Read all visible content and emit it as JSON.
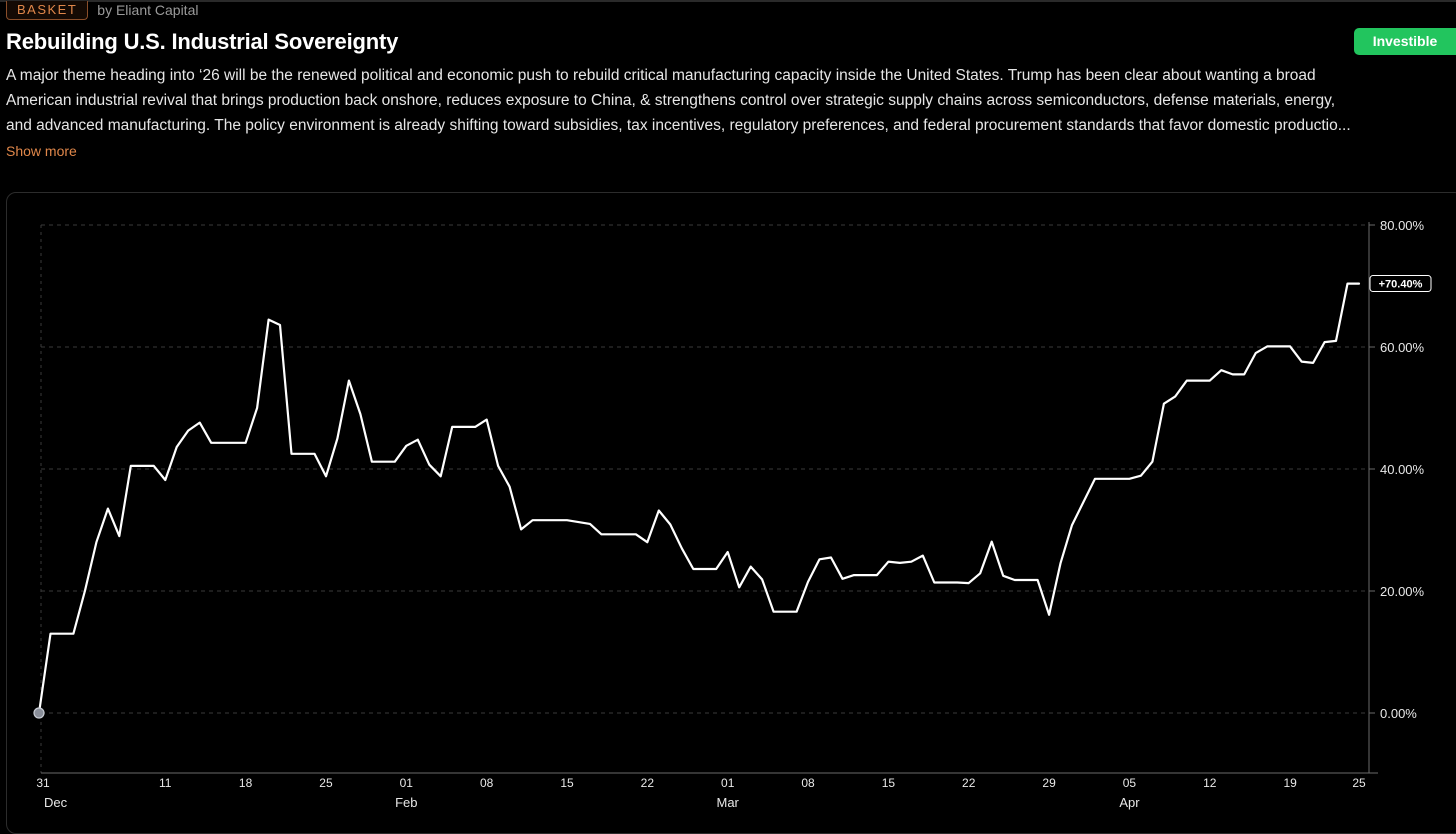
{
  "header": {
    "badge": "BASKET",
    "byline": "by Eliant Capital",
    "title": "Rebuilding U.S. Industrial Sovereignty",
    "status_button": "Investible"
  },
  "description": {
    "lines": [
      "A major theme heading into ‘26 will be the renewed political and economic push to rebuild critical manufacturing capacity inside the United States. Trump has been clear about wanting a broad",
      "American industrial revival that brings production back onshore, reduces exposure to China, & strengthens control over strategic supply chains across semiconductors, defense materials, energy,",
      "and advanced manufacturing. The policy environment is already shifting toward subsidies, tax incentives, regulatory preferences, and federal procurement standards that favor domestic productio..."
    ],
    "show_more": "Show more"
  },
  "colors": {
    "background": "#000000",
    "accent_orange": "#e0874a",
    "button_green": "#22c55e",
    "line": "#ffffff"
  },
  "chart_data": {
    "type": "line",
    "title": "",
    "xlabel": "",
    "ylabel": "",
    "y_axis": "right",
    "y_format": "percent",
    "ylim": [
      -10,
      80
    ],
    "y_ticks": [
      0,
      20,
      40,
      60,
      80
    ],
    "y_tick_labels": [
      "0.00%",
      "20.00%",
      "40.00%",
      "60.00%",
      "80.00%"
    ],
    "grid": true,
    "x_range": [
      "2025-12-31",
      "2026-04-25"
    ],
    "x_ticks": [
      {
        "date": "2025-12-31",
        "day": "31",
        "month": "Dec"
      },
      {
        "date": "2026-01-11",
        "day": "11",
        "month": ""
      },
      {
        "date": "2026-01-18",
        "day": "18",
        "month": ""
      },
      {
        "date": "2026-01-25",
        "day": "25",
        "month": ""
      },
      {
        "date": "2026-02-01",
        "day": "01",
        "month": "Feb"
      },
      {
        "date": "2026-02-08",
        "day": "08",
        "month": ""
      },
      {
        "date": "2026-02-15",
        "day": "15",
        "month": ""
      },
      {
        "date": "2026-02-22",
        "day": "22",
        "month": ""
      },
      {
        "date": "2026-03-01",
        "day": "01",
        "month": "Mar"
      },
      {
        "date": "2026-03-08",
        "day": "08",
        "month": ""
      },
      {
        "date": "2026-03-15",
        "day": "15",
        "month": ""
      },
      {
        "date": "2026-03-22",
        "day": "22",
        "month": ""
      },
      {
        "date": "2026-03-29",
        "day": "29",
        "month": ""
      },
      {
        "date": "2026-04-05",
        "day": "05",
        "month": "Apr"
      },
      {
        "date": "2026-04-12",
        "day": "12",
        "month": ""
      },
      {
        "date": "2026-04-19",
        "day": "19",
        "month": ""
      },
      {
        "date": "2026-04-25",
        "day": "25",
        "month": ""
      }
    ],
    "last_value_label": "+70.40%",
    "series": [
      {
        "x": [
          "2025-12-31",
          "2026-01-01",
          "2026-01-02",
          "2026-01-03",
          "2026-01-04",
          "2026-01-05",
          "2026-01-06",
          "2026-01-07",
          "2026-01-08",
          "2026-01-09",
          "2026-01-10",
          "2026-01-11",
          "2026-01-12",
          "2026-01-13",
          "2026-01-14",
          "2026-01-15",
          "2026-01-16",
          "2026-01-17",
          "2026-01-18",
          "2026-01-19",
          "2026-01-20",
          "2026-01-21",
          "2026-01-22",
          "2026-01-23",
          "2026-01-24",
          "2026-01-25",
          "2026-01-26",
          "2026-01-27",
          "2026-01-28",
          "2026-01-29",
          "2026-01-30",
          "2026-01-31",
          "2026-02-01",
          "2026-02-02",
          "2026-02-03",
          "2026-02-04",
          "2026-02-05",
          "2026-02-06",
          "2026-02-07",
          "2026-02-08",
          "2026-02-09",
          "2026-02-10",
          "2026-02-11",
          "2026-02-12",
          "2026-02-13",
          "2026-02-14",
          "2026-02-15",
          "2026-02-16",
          "2026-02-17",
          "2026-02-18",
          "2026-02-19",
          "2026-02-20",
          "2026-02-21",
          "2026-02-22",
          "2026-02-23",
          "2026-02-24",
          "2026-02-25",
          "2026-02-26",
          "2026-02-27",
          "2026-02-28",
          "2026-03-01",
          "2026-03-02",
          "2026-03-03",
          "2026-03-04",
          "2026-03-05",
          "2026-03-06",
          "2026-03-07",
          "2026-03-08",
          "2026-03-09",
          "2026-03-10",
          "2026-03-11",
          "2026-03-12",
          "2026-03-13",
          "2026-03-14",
          "2026-03-15",
          "2026-03-16",
          "2026-03-17",
          "2026-03-18",
          "2026-03-19",
          "2026-03-20",
          "2026-03-21",
          "2026-03-22",
          "2026-03-23",
          "2026-03-24",
          "2026-03-25",
          "2026-03-26",
          "2026-03-27",
          "2026-03-28",
          "2026-03-29",
          "2026-03-30",
          "2026-03-31",
          "2026-04-01",
          "2026-04-02",
          "2026-04-03",
          "2026-04-04",
          "2026-04-05",
          "2026-04-06",
          "2026-04-07",
          "2026-04-08",
          "2026-04-09",
          "2026-04-10",
          "2026-04-11",
          "2026-04-12",
          "2026-04-13",
          "2026-04-14",
          "2026-04-15",
          "2026-04-16",
          "2026-04-17",
          "2026-04-18",
          "2026-04-19",
          "2026-04-20",
          "2026-04-21",
          "2026-04-22",
          "2026-04-23",
          "2026-04-24",
          "2026-04-25"
        ],
        "y": [
          0,
          13,
          13,
          13,
          20,
          28,
          33.5,
          29,
          40.5,
          40.5,
          40.5,
          38.2,
          43.6,
          46.3,
          47.6,
          44.3,
          44.3,
          44.3,
          44.3,
          50,
          64.5,
          63.6,
          42.5,
          42.5,
          42.5,
          38.8,
          45,
          54.5,
          49,
          41.2,
          41.2,
          41.2,
          43.8,
          44.8,
          40.7,
          38.8,
          46.9,
          46.9,
          46.9,
          48.1,
          40.5,
          37.1,
          30.1,
          31.6,
          31.6,
          31.6,
          31.6,
          31.3,
          31,
          29.3,
          29.3,
          29.3,
          29.3,
          28,
          33.2,
          30.9,
          27,
          23.6,
          23.6,
          23.6,
          26.4,
          20.6,
          24,
          21.9,
          16.6,
          16.6,
          16.6,
          21.5,
          25.2,
          25.5,
          22,
          22.6,
          22.6,
          22.6,
          24.8,
          24.6,
          24.8,
          25.8,
          21.4,
          21.4,
          21.4,
          21.3,
          22.9,
          28.1,
          22.5,
          21.8,
          21.8,
          21.8,
          16.1,
          24.6,
          30.8,
          34.6,
          38.4,
          38.4,
          38.4,
          38.4,
          38.9,
          41.2,
          50.7,
          51.9,
          54.5,
          54.5,
          54.5,
          56.2,
          55.5,
          55.5,
          59,
          60.1,
          60.1,
          60.1,
          57.6,
          57.4,
          60.8,
          61,
          70.4,
          70.4
        ]
      }
    ]
  }
}
